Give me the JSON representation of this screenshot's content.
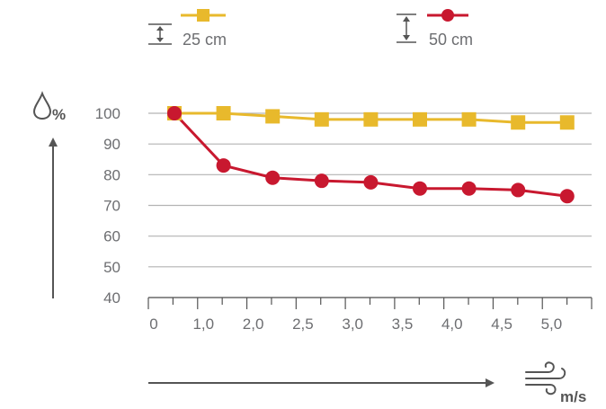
{
  "chart_data": {
    "type": "line",
    "x_tick_labels": [
      "0",
      "1,0",
      "2,0",
      "2,5",
      "3,0",
      "3,5",
      "4,0",
      "4,5",
      "5,0"
    ],
    "y_ticks": [
      100,
      90,
      80,
      70,
      60,
      50,
      40
    ],
    "ylim": [
      40,
      100
    ],
    "grid": true,
    "legend_position": "top",
    "y_unit_label": "%",
    "x_unit_label": "m/s",
    "series": [
      {
        "name": "25 cm",
        "color": "#e8b92c",
        "marker": "square",
        "values": [
          100,
          100,
          99,
          98,
          98,
          98,
          98,
          97,
          97
        ]
      },
      {
        "name": "50 cm",
        "color": "#c8182f",
        "marker": "circle",
        "values": [
          100,
          83,
          79,
          78,
          77.5,
          75.5,
          75.5,
          75,
          73
        ]
      }
    ]
  },
  "icons": {
    "humidity": "water-drop-icon",
    "wind": "wind-icon",
    "height_25": "height-arrow-icon",
    "height_50": "height-arrow-icon"
  },
  "colors": {
    "text": "#6d6e71",
    "axis": "#555555",
    "grid": "#b3b3b3"
  }
}
